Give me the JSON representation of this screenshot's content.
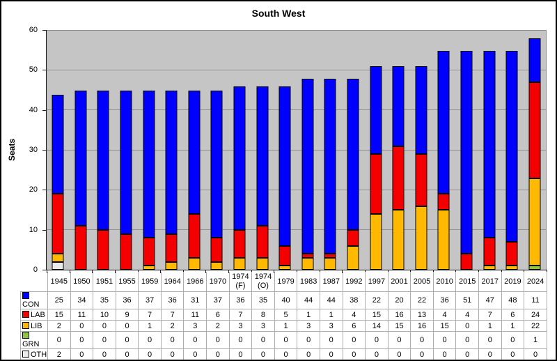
{
  "title": "South West",
  "colors": {
    "plot_background": "#C5C5C5",
    "gridline": "#929292",
    "axis": "#1a1a1a",
    "table_border": "#ACACAC",
    "CON": "#0000FF",
    "LAB": "#F40000",
    "LIB": "#FFB900",
    "GRN": "#8DC63F",
    "OTH": "#EBEBEB"
  },
  "chart_data": {
    "type": "bar",
    "stacked": true,
    "title": "South West",
    "xlabel": "",
    "ylabel": "Seats",
    "ylim": [
      0,
      60
    ],
    "yticks": [
      0,
      10,
      20,
      30,
      40,
      50,
      60
    ],
    "grid": true,
    "legend_position": "table-left",
    "categories": [
      "1945",
      "1950",
      "1951",
      "1955",
      "1959",
      "1964",
      "1966",
      "1970",
      "1974\n(F)",
      "1974\n(O)",
      "1979",
      "1983",
      "1987",
      "1992",
      "1997",
      "2001",
      "2005",
      "2010",
      "2015",
      "2017",
      "2019",
      "2024"
    ],
    "series": [
      {
        "name": "CON",
        "color": "#0000FF",
        "values": [
          25,
          34,
          35,
          36,
          37,
          36,
          31,
          37,
          36,
          35,
          40,
          44,
          44,
          38,
          22,
          20,
          22,
          36,
          51,
          47,
          48,
          11
        ]
      },
      {
        "name": "LAB",
        "color": "#F40000",
        "values": [
          15,
          11,
          10,
          9,
          7,
          7,
          11,
          6,
          7,
          8,
          5,
          1,
          1,
          4,
          15,
          16,
          13,
          4,
          4,
          7,
          6,
          24
        ]
      },
      {
        "name": "LIB",
        "color": "#FFB900",
        "values": [
          2,
          0,
          0,
          0,
          1,
          2,
          3,
          2,
          3,
          3,
          1,
          3,
          3,
          6,
          14,
          15,
          16,
          15,
          0,
          1,
          1,
          22
        ]
      },
      {
        "name": "GRN",
        "color": "#8DC63F",
        "values": [
          0,
          0,
          0,
          0,
          0,
          0,
          0,
          0,
          0,
          0,
          0,
          0,
          0,
          0,
          0,
          0,
          0,
          0,
          0,
          0,
          0,
          1
        ]
      },
      {
        "name": "OTH",
        "color": "#EBEBEB",
        "values": [
          2,
          0,
          0,
          0,
          0,
          0,
          0,
          0,
          0,
          0,
          0,
          0,
          0,
          0,
          0,
          0,
          0,
          0,
          0,
          0,
          0,
          0
        ]
      }
    ]
  }
}
